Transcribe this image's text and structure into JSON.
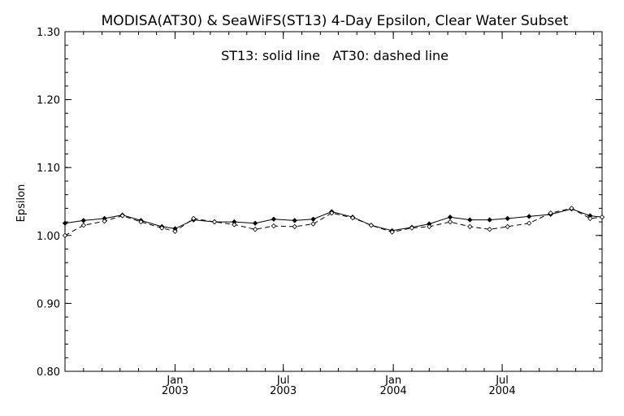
{
  "chart_data": {
    "type": "line",
    "title": "MODISA(AT30) & SeaWiFS(ST13) 4-Day Epsilon, Clear Water Subset",
    "annotation": "ST13: solid line   AT30: dashed line",
    "xlabel": "",
    "ylabel": "Epsilon",
    "ylim": [
      0.8,
      1.3
    ],
    "yticks": [
      "0.80",
      "0.90",
      "1.00",
      "1.10",
      "1.20",
      "1.30"
    ],
    "xlim": [
      "2002-07-01",
      "2004-12-15"
    ],
    "xticks": [
      {
        "month": "Jan",
        "year": "2003",
        "date": "2003-01-01"
      },
      {
        "month": "Jul",
        "year": "2003",
        "date": "2003-07-01"
      },
      {
        "month": "Jan",
        "year": "2004",
        "date": "2004-01-01"
      },
      {
        "month": "Jul",
        "year": "2004",
        "date": "2004-07-01"
      }
    ],
    "grid": false,
    "x": [
      "2002-07-01",
      "2002-08-01",
      "2002-09-05",
      "2002-10-05",
      "2002-11-05",
      "2002-12-10",
      "2003-01-01",
      "2003-02-01",
      "2003-03-08",
      "2003-04-10",
      "2003-05-15",
      "2003-06-15",
      "2003-07-20",
      "2003-08-20",
      "2003-09-20",
      "2003-10-25",
      "2003-11-25",
      "2003-12-30",
      "2004-02-01",
      "2004-03-01",
      "2004-04-05",
      "2004-05-08",
      "2004-06-10",
      "2004-07-10",
      "2004-08-15",
      "2004-09-20",
      "2004-10-25",
      "2004-11-25",
      "2004-12-15"
    ],
    "series": [
      {
        "name": "ST13",
        "style": "solid",
        "values": [
          1.018,
          1.022,
          1.025,
          1.03,
          1.022,
          1.013,
          1.01,
          1.023,
          1.02,
          1.02,
          1.018,
          1.024,
          1.022,
          1.024,
          1.035,
          1.027,
          1.015,
          1.007,
          1.012,
          1.017,
          1.027,
          1.023,
          1.023,
          1.025,
          1.028,
          1.031,
          1.039,
          1.029,
          1.027
        ]
      },
      {
        "name": "AT30",
        "style": "dashed",
        "values": [
          1.0,
          1.015,
          1.021,
          1.029,
          1.02,
          1.011,
          1.006,
          1.025,
          1.02,
          1.016,
          1.009,
          1.014,
          1.013,
          1.017,
          1.033,
          1.026,
          1.015,
          1.005,
          1.011,
          1.013,
          1.02,
          1.013,
          1.009,
          1.013,
          1.018,
          1.033,
          1.04,
          1.025,
          1.027
        ]
      }
    ]
  }
}
